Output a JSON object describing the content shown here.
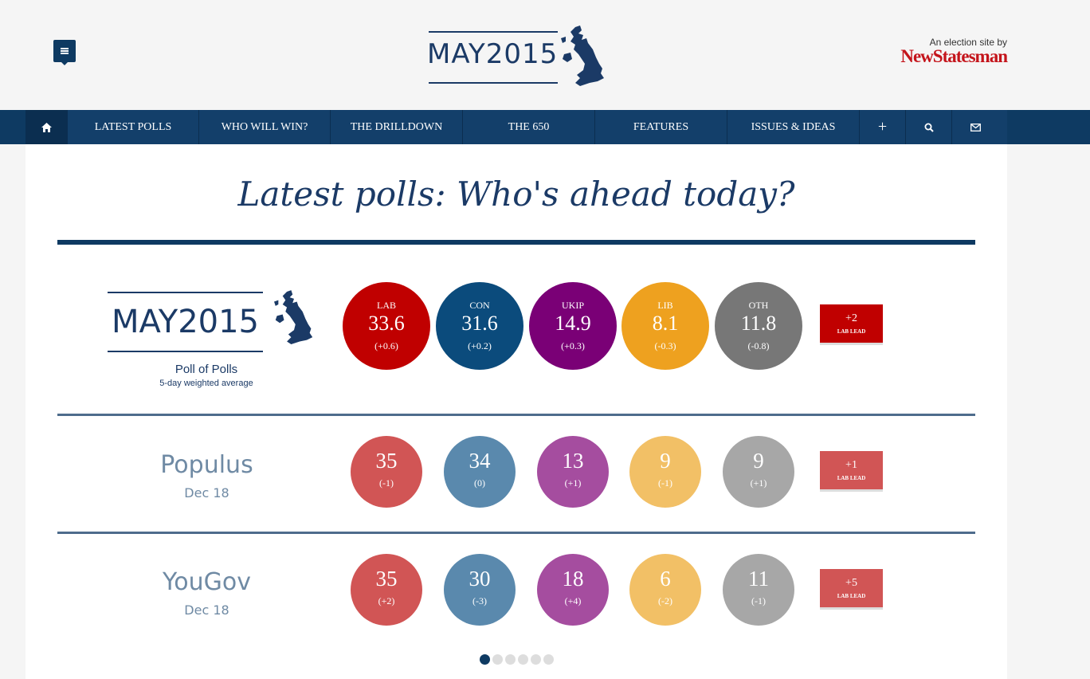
{
  "brand": {
    "name": "MAY2015"
  },
  "partner": {
    "byline": "An election site by",
    "name": "NewStatesman"
  },
  "nav": {
    "items": [
      "LATEST POLLS",
      "WHO WILL WIN?",
      "THE DRILLDOWN",
      "THE 650",
      "FEATURES",
      "ISSUES & IDEAS"
    ],
    "plus": "+"
  },
  "page": {
    "title": "Latest polls: Who's ahead today?"
  },
  "poll_of_polls": {
    "label": "Poll of Polls",
    "sublabel": "5-day weighted average",
    "parties": [
      {
        "party": "LAB",
        "value": "33.6",
        "change": "(+0.6)",
        "color": "#c00000"
      },
      {
        "party": "CON",
        "value": "31.6",
        "change": "(+0.2)",
        "color": "#0b4b7c"
      },
      {
        "party": "UKIP",
        "value": "14.9",
        "change": "(+0.3)",
        "color": "#7a0076"
      },
      {
        "party": "LIB",
        "value": "8.1",
        "change": "(-0.3)",
        "color": "#eea11f"
      },
      {
        "party": "OTH",
        "value": "11.8",
        "change": "(-0.8)",
        "color": "#777777"
      }
    ],
    "lead": {
      "value": "+2",
      "label": "LAB LEAD",
      "color": "#c00000"
    }
  },
  "polls": [
    {
      "pollster": "Populus",
      "date": "Dec 18",
      "values": [
        {
          "value": "35",
          "change": "(-1)"
        },
        {
          "value": "34",
          "change": "(0)"
        },
        {
          "value": "13",
          "change": "(+1)"
        },
        {
          "value": "9",
          "change": "(-1)"
        },
        {
          "value": "9",
          "change": "(+1)"
        }
      ],
      "lead": {
        "value": "+1",
        "label": "LAB LEAD"
      }
    },
    {
      "pollster": "YouGov",
      "date": "Dec 18",
      "values": [
        {
          "value": "35",
          "change": "(+2)"
        },
        {
          "value": "30",
          "change": "(-3)"
        },
        {
          "value": "18",
          "change": "(+4)"
        },
        {
          "value": "6",
          "change": "(-2)"
        },
        {
          "value": "11",
          "change": "(-1)"
        }
      ],
      "lead": {
        "value": "+5",
        "label": "LAB LEAD"
      }
    }
  ],
  "light_colors": [
    "#d15555",
    "#5a89ad",
    "#a54d9f",
    "#f2c066",
    "#a7a7a7"
  ],
  "lead_light_color": "#d15555",
  "carousel": {
    "pages": 6,
    "active": 1
  }
}
